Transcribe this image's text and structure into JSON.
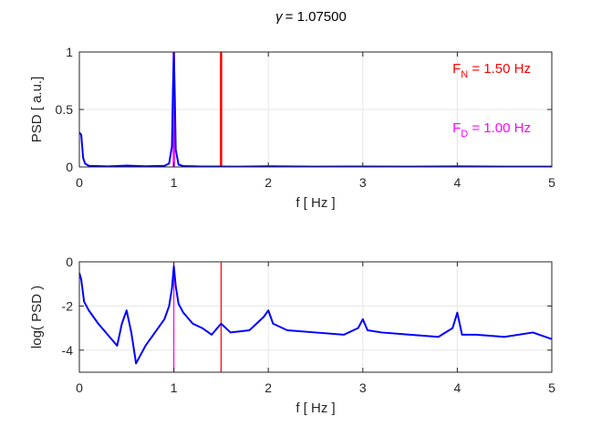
{
  "figure": {
    "title_symbol": "γ",
    "title_value": "= 1.07500"
  },
  "colors": {
    "psd": "#0000ff",
    "natural_freq": "#ff0000",
    "driving_freq": "#ff00ff",
    "grid": "#e6e6e6",
    "axis": "#262626"
  },
  "chart_data": [
    {
      "type": "line",
      "xlabel": "f  [ Hz ]",
      "ylabel": "PSD  [ a.u.]",
      "xlim": [
        0,
        5
      ],
      "ylim": [
        0,
        1
      ],
      "xticks": [
        "0",
        "1",
        "2",
        "3",
        "4",
        "5"
      ],
      "yticks": [
        "0",
        "0.5",
        "1"
      ],
      "grid": true,
      "series": [
        {
          "x": [
            0,
            0.02,
            0.04,
            0.06,
            0.1,
            0.3,
            0.5,
            0.7,
            0.9,
            0.95,
            0.98,
            0.99,
            1.0,
            1.01,
            1.02,
            1.05,
            1.1,
            1.3,
            1.5,
            1.7,
            2.0,
            2.5,
            3.0,
            3.5,
            4.0,
            4.5,
            5.0
          ],
          "y": [
            0.3,
            0.28,
            0.08,
            0.03,
            0.01,
            0.005,
            0.012,
            0.006,
            0.01,
            0.03,
            0.18,
            0.65,
            1.0,
            0.62,
            0.15,
            0.02,
            0.008,
            0.004,
            0.004,
            0.003,
            0.006,
            0.003,
            0.004,
            0.003,
            0.005,
            0.003,
            0.003
          ]
        }
      ],
      "vlines": [
        {
          "x": 1.0,
          "role": "driving"
        },
        {
          "x": 1.5,
          "role": "natural"
        }
      ],
      "annotations": [
        {
          "main": "F",
          "sub": "N",
          "rest": " = 1.50 Hz",
          "role": "natural"
        },
        {
          "main": "F",
          "sub": "D",
          "rest": " = 1.00 Hz",
          "role": "driving"
        }
      ]
    },
    {
      "type": "line",
      "xlabel": "f  [ Hz ]",
      "ylabel": "log( PSD )",
      "xlim": [
        0,
        5
      ],
      "ylim": [
        -5,
        0
      ],
      "xticks": [
        "0",
        "1",
        "2",
        "3",
        "4",
        "5"
      ],
      "yticks": [
        "-4",
        "-2",
        "0"
      ],
      "grid": true,
      "series": [
        {
          "x": [
            0,
            0.02,
            0.05,
            0.1,
            0.2,
            0.3,
            0.4,
            0.45,
            0.5,
            0.55,
            0.6,
            0.7,
            0.8,
            0.9,
            0.95,
            0.98,
            1.0,
            1.02,
            1.05,
            1.1,
            1.2,
            1.3,
            1.4,
            1.5,
            1.6,
            1.8,
            1.95,
            2.0,
            2.05,
            2.2,
            2.5,
            2.8,
            2.95,
            3.0,
            3.05,
            3.2,
            3.5,
            3.8,
            3.95,
            4.0,
            4.05,
            4.2,
            4.5,
            4.8,
            5.0
          ],
          "y": [
            -0.5,
            -0.8,
            -1.8,
            -2.2,
            -2.8,
            -3.3,
            -3.8,
            -2.8,
            -2.2,
            -3.2,
            -4.6,
            -3.8,
            -3.2,
            -2.6,
            -2.0,
            -1.2,
            -0.2,
            -1.1,
            -1.9,
            -2.3,
            -2.8,
            -3.0,
            -3.3,
            -2.8,
            -3.2,
            -3.1,
            -2.5,
            -2.2,
            -2.8,
            -3.1,
            -3.2,
            -3.3,
            -3.0,
            -2.6,
            -3.1,
            -3.2,
            -3.3,
            -3.4,
            -3.0,
            -2.3,
            -3.3,
            -3.3,
            -3.4,
            -3.2,
            -3.5
          ]
        }
      ],
      "vlines": [
        {
          "x": 1.0,
          "role": "driving"
        },
        {
          "x": 1.5,
          "role": "natural"
        }
      ]
    }
  ]
}
